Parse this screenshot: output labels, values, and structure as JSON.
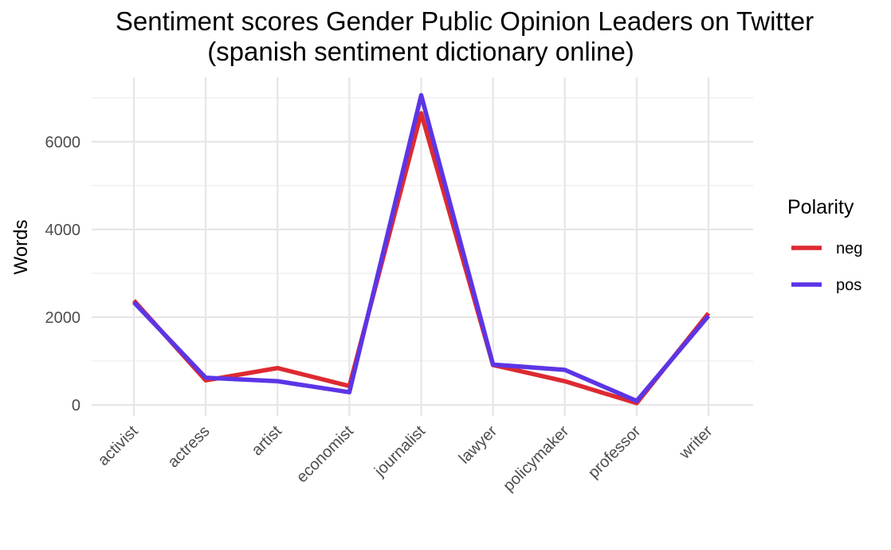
{
  "chart_data": {
    "type": "line",
    "title": "Sentiment scores Gender Public Opinion Leaders on Twitter",
    "subtitle": "(spanish sentiment dictionary online)",
    "xlabel": "",
    "ylabel": "Words",
    "categories": [
      "activist",
      "actress",
      "artist",
      "economist",
      "journalist",
      "lawyer",
      "policymaker",
      "professor",
      "writer"
    ],
    "y_ticks": [
      0,
      2000,
      4000,
      6000
    ],
    "ylim": [
      -200,
      7300
    ],
    "grid": true,
    "legend": {
      "title": "Polarity",
      "position": "right"
    },
    "series": [
      {
        "name": "neg",
        "color": "#dd2a31",
        "values": [
          2380,
          560,
          840,
          430,
          6650,
          910,
          540,
          40,
          2090
        ]
      },
      {
        "name": "pos",
        "color": "#5c35e6",
        "values": [
          2340,
          620,
          540,
          290,
          7060,
          920,
          800,
          90,
          2030
        ]
      }
    ]
  }
}
